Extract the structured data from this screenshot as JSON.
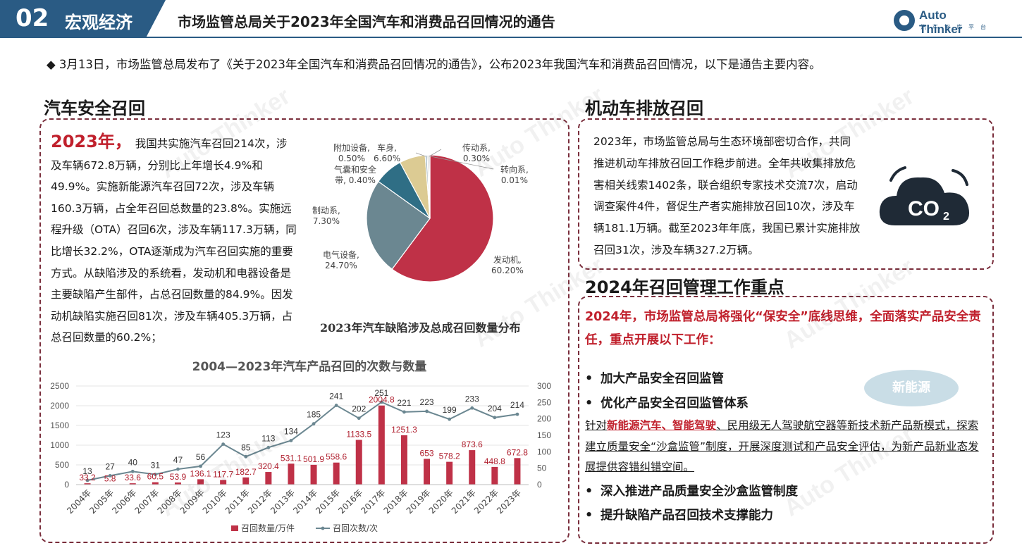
{
  "header": {
    "section_number": "02",
    "section_name": "宏观经济",
    "title": "市场监管总局关于2023年全国汽车和消费品召回情况的通告",
    "logo_text": "Auto Thinker",
    "logo_sub": "汽车智库平台"
  },
  "intro": "◆ 3月13日，市场监管总局发布了《关于2023年全国汽车和消费品召回情况的通告》，公布2023年我国汽车和消费品召回情况，以下是通告主要内容。",
  "auto_recall": {
    "heading": "汽车安全召回",
    "year_label": "2023年，",
    "paragraph": "我国共实施汽车召回214次，涉及车辆672.8万辆，分别比上年增长4.9%和49.9%。实施新能源汽车召回72次，涉及车辆160.3万辆，占全年召回总数量的23.8%。实施远程升级（OTA）召回6次，涉及车辆117.3万辆，同比增长32.2%，OTA逐渐成为汽车召回实施的重要方式。从缺陷涉及的系统看，发动机和电器设备是主要缺陷产生部件，占总召回数量的84.9%。因发动机缺陷实施召回81次，涉及车辆405.3万辆，占总召回数量的60.2%；"
  },
  "emission_recall": {
    "heading": "机动车排放召回",
    "paragraph": "2023年，市场监管总局与生态环境部密切合作，共同推进机动车排放召回工作稳步前进。全年共收集排放危害相关线索1402条，联合组织专家技术交流7次，启动调查案件4件，督促生产者实施排放召回10次，涉及车辆181.1万辆。截至2023年年底，我国已累计实施排放召回31次，涉及车辆327.2万辆。",
    "icon_text": "CO",
    "icon_sub": "2"
  },
  "plan_2024": {
    "heading": "2024年召回管理工作重点",
    "lead": "2024年，市场监管总局将强化“保安全”底线思维，全面落实产品安全责任，重点开展以下工作：",
    "bullets": [
      "加大产品安全召回监管",
      "优化产品安全召回监管体系",
      "深入推进产品质量安全沙盒监管制度",
      "提升缺陷产品召回技术支撑能力"
    ],
    "detail_prefix": "针对",
    "detail_hl1": "新能源汽车",
    "detail_sep": "、",
    "detail_hl2": "智能驾驶",
    "detail_rest": "、民用级无人驾驶航空器等新技术新产品新模式，探索建立质量安全“沙盒监管”制度，开展深度测试和产品安全评估，为新产品新业态发展提供容错纠错空间。",
    "badge": "新能源",
    "bullet_symbol": "•"
  },
  "chart_data": [
    {
      "type": "pie",
      "title": "2023年汽车缺陷涉及总成召回数量分布",
      "slices": [
        {
          "label": "发动机,",
          "value_label": "60.20%",
          "value": 60.2,
          "color": "#bf3147"
        },
        {
          "label": "电气设备,",
          "value_label": "24.70%",
          "value": 24.7,
          "color": "#6b8791"
        },
        {
          "label": "制动系,",
          "value_label": "7.30%",
          "value": 7.3,
          "color": "#2f6e85"
        },
        {
          "label": "车身,",
          "value_label": "6.60%",
          "value": 6.6,
          "color": "#dccb93"
        },
        {
          "label": "附加设备,",
          "value_label": "0.50%",
          "value": 0.5,
          "color": "#9fb3bd"
        },
        {
          "label": "气囊和安全带,",
          "value_label": "0.40%",
          "value": 0.4,
          "color": "#c9c9c9"
        },
        {
          "label": "传动系,",
          "value_label": "0.30%",
          "value": 0.3,
          "color": "#8c8c8c"
        },
        {
          "label": "转向系,",
          "value_label": "0.01%",
          "value": 0.01,
          "color": "#5f5f5f"
        }
      ]
    },
    {
      "type": "bar",
      "title": "2004—2023年汽车产品召回的次数与数量",
      "categories": [
        "2004年",
        "2005年",
        "2006年",
        "2007年",
        "2008年",
        "2009年",
        "2010年",
        "2011年",
        "2012年",
        "2013年",
        "2014年",
        "2015年",
        "2016年",
        "2017年",
        "2018年",
        "2019年",
        "2020年",
        "2021年",
        "2022年",
        "2023年"
      ],
      "series": [
        {
          "name": "召回数量/万件",
          "kind": "bar",
          "axis": "left",
          "color": "#bf3147",
          "values": [
            33.2,
            5.8,
            33.6,
            60.5,
            53.9,
            136.1,
            117.7,
            182.7,
            320.4,
            531.1,
            501.9,
            558.6,
            1133.5,
            2004.8,
            1251.3,
            653,
            578.2,
            873.6,
            448.8,
            672.8
          ],
          "labels": [
            "33.2",
            "5.8",
            "33.6",
            "60.5",
            "53.9",
            "136.1",
            "117.7",
            "182.7",
            "320.4",
            "531.1",
            "501.9",
            "558.6",
            "1133.5",
            "2004.8",
            "1251.3",
            "653",
            "578.2",
            "873.6",
            "448.8",
            "672.8"
          ]
        },
        {
          "name": "召回次数/次",
          "kind": "line",
          "axis": "right",
          "color": "#6b8791",
          "values": [
            13,
            27,
            40,
            31,
            47,
            56,
            123,
            85,
            113,
            134,
            185,
            241,
            202,
            251,
            221,
            223,
            199,
            233,
            204,
            214
          ],
          "labels": [
            "13",
            "27",
            "40",
            "31",
            "47",
            "56",
            "123",
            "85",
            "113",
            "134",
            "185",
            "241",
            "202",
            "251",
            "221",
            "223",
            "199",
            "233",
            "204",
            "214"
          ]
        }
      ],
      "ylim_left": [
        0,
        2500
      ],
      "yticks_left": [
        "0",
        "500",
        "1000",
        "1500",
        "2000",
        "2500"
      ],
      "ylim_right": [
        0,
        300
      ],
      "yticks_right": [
        "0",
        "50",
        "100",
        "150",
        "200",
        "250",
        "300"
      ],
      "legend_position": "bottom",
      "grid": true
    }
  ],
  "watermark": "Auto Thinker"
}
